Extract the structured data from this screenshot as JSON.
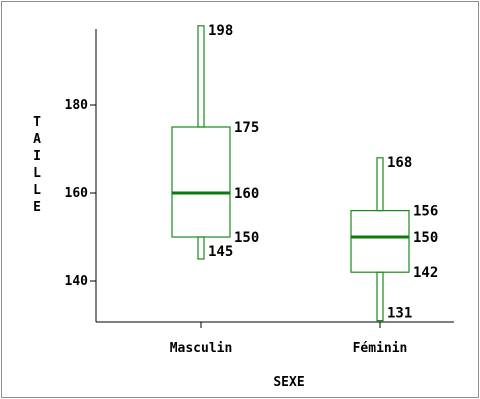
{
  "colors": {
    "box": "#1a8a1a",
    "median": "#0a7a0a",
    "axis": "#000000",
    "frame": "#8f8f8f"
  },
  "chart_data": {
    "type": "box",
    "title": "",
    "xlabel": "SEXE",
    "ylabel": "TAILLE",
    "ylim": [
      131,
      198
    ],
    "yticks": [
      140,
      160,
      180
    ],
    "ytick_labels": [
      "140",
      "160",
      "180"
    ],
    "categories": [
      "Masculin",
      "Féminin"
    ],
    "series": [
      {
        "category": "Masculin",
        "min": 145,
        "q1": 150,
        "median": 160,
        "q3": 175,
        "max": 198,
        "labels": [
          "198",
          "175",
          "160",
          "150",
          "145"
        ]
      },
      {
        "category": "Féminin",
        "min": 131,
        "q1": 142,
        "median": 150,
        "q3": 156,
        "max": 168,
        "labels": [
          "168",
          "156",
          "150",
          "142",
          "131"
        ]
      }
    ]
  }
}
